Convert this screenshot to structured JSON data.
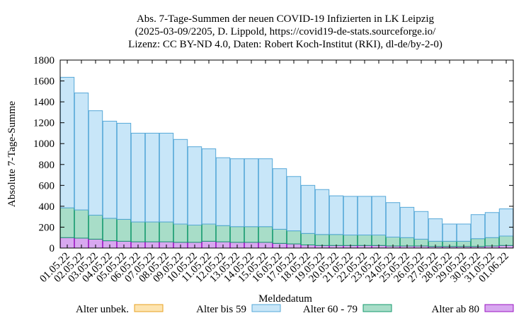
{
  "chart_data": {
    "type": "bar",
    "stacked": true,
    "title_lines": [
      "Abs. 7-Tage-Summen der neuen COVID-19 Infizierten in LK Leipzig",
      "(2025-03-09/2205, D. Lippold, https://covid19-de-stats.sourceforge.io/",
      "Lizenz: CC BY-ND 4.0, Daten: Robert Koch-Institut (RKI), dl-de/by-2-0)"
    ],
    "xlabel": "Meldedatum",
    "ylabel": "Absolute 7-Tage-Summe",
    "ylim": [
      0,
      1800
    ],
    "yticks": [
      0,
      200,
      400,
      600,
      800,
      1000,
      1200,
      1400,
      1600,
      1800
    ],
    "categories": [
      "01.05.22",
      "02.05.22",
      "03.05.22",
      "04.05.22",
      "05.05.22",
      "06.05.22",
      "07.05.22",
      "08.05.22",
      "09.05.22",
      "10.05.22",
      "11.05.22",
      "12.05.22",
      "13.05.22",
      "14.05.22",
      "15.05.22",
      "16.05.22",
      "17.05.22",
      "18.05.22",
      "19.05.22",
      "20.05.22",
      "21.05.22",
      "22.05.22",
      "23.05.22",
      "24.05.22",
      "25.05.22",
      "26.05.22",
      "27.05.22",
      "28.05.22",
      "29.05.22",
      "30.05.22",
      "31.05.22",
      "01.06.22"
    ],
    "series": [
      {
        "name": "Alter ab 80",
        "color": "#d8a8f0",
        "edge": "#9a14c0",
        "values": [
          100,
          95,
          85,
          70,
          65,
          60,
          60,
          60,
          55,
          55,
          65,
          60,
          55,
          55,
          55,
          45,
          40,
          30,
          25,
          25,
          25,
          25,
          25,
          20,
          20,
          20,
          15,
          15,
          15,
          15,
          20,
          25
        ]
      },
      {
        "name": "Alter 60 - 79",
        "color": "#a8ddc8",
        "edge": "#149a6e",
        "values": [
          285,
          270,
          230,
          215,
          210,
          190,
          190,
          190,
          175,
          165,
          165,
          155,
          150,
          150,
          150,
          135,
          125,
          110,
          105,
          105,
          100,
          100,
          100,
          85,
          80,
          65,
          50,
          50,
          50,
          75,
          80,
          90
        ]
      },
      {
        "name": "Alter bis 59",
        "color": "#c8e6f8",
        "edge": "#56a8d8",
        "values": [
          1250,
          1120,
          1000,
          930,
          920,
          850,
          850,
          850,
          810,
          750,
          720,
          650,
          650,
          650,
          650,
          580,
          520,
          460,
          430,
          370,
          370,
          370,
          370,
          330,
          290,
          265,
          215,
          165,
          165,
          230,
          240,
          260
        ]
      },
      {
        "name": "Alter unbek.",
        "color": "#fde4b0",
        "edge": "#e8a020",
        "values": [
          0,
          0,
          0,
          0,
          0,
          0,
          0,
          0,
          0,
          0,
          0,
          0,
          0,
          0,
          0,
          0,
          0,
          0,
          0,
          0,
          0,
          0,
          0,
          0,
          0,
          0,
          0,
          0,
          0,
          0,
          0,
          0
        ]
      }
    ],
    "legend_order": [
      "Alter unbek.",
      "Alter bis 59",
      "Alter 60 - 79",
      "Alter ab 80"
    ],
    "legend_position": "bottom"
  }
}
